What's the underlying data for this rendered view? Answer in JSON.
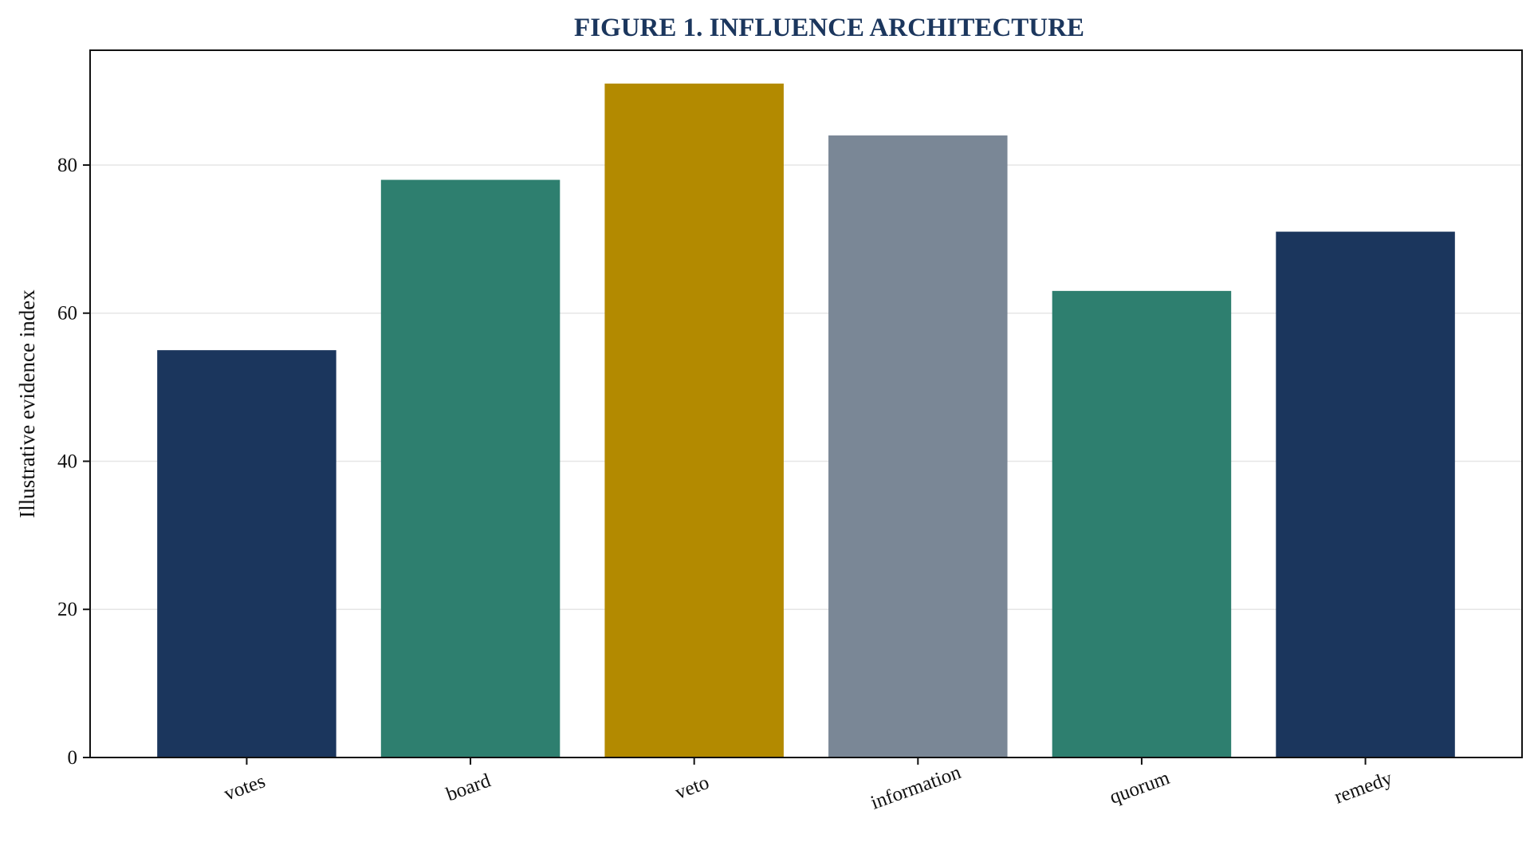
{
  "chart_data": {
    "type": "bar",
    "title": "FIGURE 1. INFLUENCE ARCHITECTURE",
    "xlabel": "",
    "ylabel": "Illustrative evidence index",
    "categories": [
      "votes",
      "board",
      "veto",
      "information",
      "quorum",
      "remedy"
    ],
    "values": [
      55,
      78,
      91,
      84,
      63,
      71
    ],
    "colors": [
      "#1b365d",
      "#2e7f6f",
      "#b38a00",
      "#7a8796",
      "#2e7f6f",
      "#1b365d"
    ],
    "ylim": [
      0,
      95.5
    ],
    "yticks": [
      0,
      20,
      40,
      60,
      80
    ],
    "grid": true,
    "legend": "none"
  }
}
